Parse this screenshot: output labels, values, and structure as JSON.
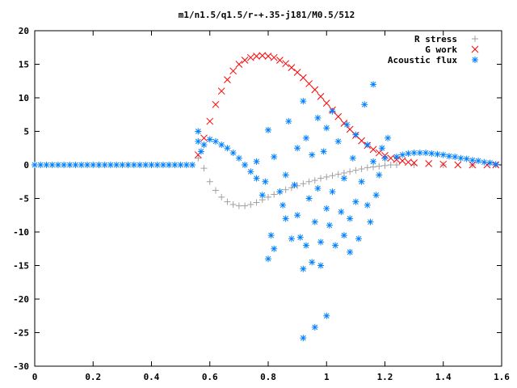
{
  "chart_data": {
    "type": "scatter",
    "title": "m1/n1.5/q1.5/r-+.35-j181/M0.5/512",
    "xlabel": "",
    "ylabel": "",
    "xlim": [
      0,
      1.6
    ],
    "ylim": [
      -30,
      20
    ],
    "x_ticks": [
      0,
      0.2,
      0.4,
      0.6,
      0.8,
      1,
      1.2,
      1.4,
      1.6
    ],
    "x_tick_labels": [
      "0",
      "0.2",
      "0.4",
      "0.6",
      "0.8",
      "1",
      "1.2",
      "1.4",
      "1.6"
    ],
    "y_ticks": [
      -30,
      -25,
      -20,
      -15,
      -10,
      -5,
      0,
      5,
      10,
      15,
      20
    ],
    "y_tick_labels": [
      "-30",
      "-25",
      "-20",
      "-15",
      "-10",
      "-5",
      "0",
      "5",
      "10",
      "15",
      "20"
    ],
    "grid": false,
    "legend_position": "top-right",
    "series": [
      {
        "name": "R stress",
        "marker": "plus",
        "color": "#a0a0a0",
        "points": [
          [
            0.56,
            1.0
          ],
          [
            0.58,
            -0.5
          ],
          [
            0.6,
            -2.5
          ],
          [
            0.62,
            -3.8
          ],
          [
            0.64,
            -4.8
          ],
          [
            0.66,
            -5.5
          ],
          [
            0.68,
            -5.9
          ],
          [
            0.7,
            -6.1
          ],
          [
            0.72,
            -6.1
          ],
          [
            0.74,
            -5.9
          ],
          [
            0.76,
            -5.6
          ],
          [
            0.78,
            -5.2
          ],
          [
            0.8,
            -4.8
          ],
          [
            0.82,
            -4.4
          ],
          [
            0.84,
            -4.0
          ],
          [
            0.86,
            -3.7
          ],
          [
            0.88,
            -3.4
          ],
          [
            0.9,
            -3.1
          ],
          [
            0.92,
            -2.8
          ],
          [
            0.94,
            -2.5
          ],
          [
            0.96,
            -2.3
          ],
          [
            0.98,
            -2.0
          ],
          [
            1.0,
            -1.8
          ],
          [
            1.02,
            -1.6
          ],
          [
            1.04,
            -1.4
          ],
          [
            1.06,
            -1.2
          ],
          [
            1.08,
            -1.0
          ],
          [
            1.1,
            -0.8
          ],
          [
            1.12,
            -0.6
          ],
          [
            1.14,
            -0.4
          ],
          [
            1.16,
            -0.3
          ],
          [
            1.18,
            -0.2
          ],
          [
            1.2,
            -0.1
          ],
          [
            1.22,
            0.0
          ],
          [
            1.24,
            0.0
          ],
          [
            1.3,
            0.0
          ],
          [
            1.4,
            0.0
          ],
          [
            1.5,
            0.0
          ],
          [
            1.58,
            0.0
          ]
        ]
      },
      {
        "name": "G work",
        "marker": "cross",
        "color": "#ff0000",
        "points": [
          [
            0.56,
            1.5
          ],
          [
            0.58,
            4.0
          ],
          [
            0.6,
            6.5
          ],
          [
            0.62,
            9.0
          ],
          [
            0.64,
            11.0
          ],
          [
            0.66,
            12.7
          ],
          [
            0.68,
            14.0
          ],
          [
            0.7,
            15.0
          ],
          [
            0.72,
            15.6
          ],
          [
            0.74,
            16.0
          ],
          [
            0.76,
            16.2
          ],
          [
            0.78,
            16.3
          ],
          [
            0.8,
            16.2
          ],
          [
            0.82,
            16.0
          ],
          [
            0.84,
            15.6
          ],
          [
            0.86,
            15.1
          ],
          [
            0.88,
            14.5
          ],
          [
            0.9,
            13.8
          ],
          [
            0.92,
            13.0
          ],
          [
            0.94,
            12.1
          ],
          [
            0.96,
            11.2
          ],
          [
            0.98,
            10.2
          ],
          [
            1.0,
            9.2
          ],
          [
            1.02,
            8.2
          ],
          [
            1.04,
            7.2
          ],
          [
            1.06,
            6.2
          ],
          [
            1.08,
            5.3
          ],
          [
            1.1,
            4.4
          ],
          [
            1.12,
            3.6
          ],
          [
            1.14,
            2.9
          ],
          [
            1.16,
            2.3
          ],
          [
            1.18,
            1.8
          ],
          [
            1.2,
            1.4
          ],
          [
            1.22,
            1.0
          ],
          [
            1.24,
            0.8
          ],
          [
            1.26,
            0.6
          ],
          [
            1.28,
            0.4
          ],
          [
            1.3,
            0.3
          ],
          [
            1.35,
            0.2
          ],
          [
            1.4,
            0.1
          ],
          [
            1.45,
            0.0
          ],
          [
            1.5,
            0.0
          ],
          [
            1.55,
            0.0
          ],
          [
            1.58,
            0.0
          ]
        ]
      },
      {
        "name": "Acoustic flux",
        "marker": "star",
        "color": "#0080ff",
        "points": [
          [
            0.0,
            0.0
          ],
          [
            0.02,
            0.0
          ],
          [
            0.04,
            0.0
          ],
          [
            0.06,
            0.0
          ],
          [
            0.08,
            0.0
          ],
          [
            0.1,
            0.0
          ],
          [
            0.12,
            0.0
          ],
          [
            0.14,
            0.0
          ],
          [
            0.16,
            0.0
          ],
          [
            0.18,
            0.0
          ],
          [
            0.2,
            0.0
          ],
          [
            0.22,
            0.0
          ],
          [
            0.24,
            0.0
          ],
          [
            0.26,
            0.0
          ],
          [
            0.28,
            0.0
          ],
          [
            0.3,
            0.0
          ],
          [
            0.32,
            0.0
          ],
          [
            0.34,
            0.0
          ],
          [
            0.36,
            0.0
          ],
          [
            0.38,
            0.0
          ],
          [
            0.4,
            0.0
          ],
          [
            0.42,
            0.0
          ],
          [
            0.44,
            0.0
          ],
          [
            0.46,
            0.0
          ],
          [
            0.48,
            0.0
          ],
          [
            0.5,
            0.0
          ],
          [
            0.52,
            0.0
          ],
          [
            0.54,
            0.0
          ],
          [
            0.56,
            3.5
          ],
          [
            0.56,
            5.0
          ],
          [
            0.57,
            2.0
          ],
          [
            0.58,
            3.0
          ],
          [
            0.6,
            3.8
          ],
          [
            0.62,
            3.5
          ],
          [
            0.64,
            3.0
          ],
          [
            0.66,
            2.5
          ],
          [
            0.68,
            1.8
          ],
          [
            0.7,
            1.0
          ],
          [
            0.72,
            0.0
          ],
          [
            0.74,
            -1.0
          ],
          [
            0.76,
            -2.0
          ],
          [
            0.76,
            0.5
          ],
          [
            0.78,
            -4.5
          ],
          [
            0.79,
            -2.5
          ],
          [
            0.8,
            5.2
          ],
          [
            0.8,
            -14.0
          ],
          [
            0.81,
            -10.5
          ],
          [
            0.82,
            -12.5
          ],
          [
            0.82,
            1.2
          ],
          [
            0.84,
            -4.0
          ],
          [
            0.85,
            -6.0
          ],
          [
            0.86,
            -8.0
          ],
          [
            0.86,
            -1.5
          ],
          [
            0.87,
            6.5
          ],
          [
            0.88,
            -11.0
          ],
          [
            0.89,
            -3.0
          ],
          [
            0.9,
            2.5
          ],
          [
            0.9,
            -7.5
          ],
          [
            0.91,
            -10.8
          ],
          [
            0.92,
            9.5
          ],
          [
            0.92,
            -15.5
          ],
          [
            0.93,
            4.0
          ],
          [
            0.93,
            -12.0
          ],
          [
            0.94,
            -5.0
          ],
          [
            0.95,
            1.5
          ],
          [
            0.95,
            -14.5
          ],
          [
            0.96,
            -8.5
          ],
          [
            0.97,
            7.0
          ],
          [
            0.97,
            -3.5
          ],
          [
            0.98,
            -11.5
          ],
          [
            0.98,
            -15.0
          ],
          [
            0.99,
            2.0
          ],
          [
            1.0,
            5.5
          ],
          [
            1.0,
            -6.5
          ],
          [
            1.01,
            -9.0
          ],
          [
            1.02,
            -4.0
          ],
          [
            1.02,
            8.0
          ],
          [
            1.03,
            -12.0
          ],
          [
            1.04,
            3.5
          ],
          [
            1.05,
            -7.0
          ],
          [
            1.06,
            -2.0
          ],
          [
            1.06,
            -10.5
          ],
          [
            1.07,
            6.0
          ],
          [
            1.08,
            -8.0
          ],
          [
            1.08,
            -13.0
          ],
          [
            1.09,
            1.0
          ],
          [
            1.1,
            -5.5
          ],
          [
            1.1,
            4.5
          ],
          [
            1.11,
            -11.0
          ],
          [
            1.12,
            -2.5
          ],
          [
            1.13,
            9.0
          ],
          [
            1.14,
            -6.0
          ],
          [
            1.14,
            3.0
          ],
          [
            1.15,
            -8.5
          ],
          [
            1.16,
            12.0
          ],
          [
            1.16,
            0.5
          ],
          [
            1.17,
            -4.5
          ],
          [
            1.18,
            -1.5
          ],
          [
            1.19,
            2.5
          ],
          [
            1.2,
            1.0
          ],
          [
            1.21,
            4.0
          ],
          [
            0.92,
            -25.8
          ],
          [
            0.96,
            -24.2
          ],
          [
            1.0,
            -22.5
          ],
          [
            1.24,
            1.2
          ],
          [
            1.26,
            1.5
          ],
          [
            1.28,
            1.7
          ],
          [
            1.3,
            1.8
          ],
          [
            1.32,
            1.8
          ],
          [
            1.34,
            1.8
          ],
          [
            1.36,
            1.7
          ],
          [
            1.38,
            1.6
          ],
          [
            1.4,
            1.5
          ],
          [
            1.42,
            1.3
          ],
          [
            1.44,
            1.2
          ],
          [
            1.46,
            1.0
          ],
          [
            1.48,
            0.9
          ],
          [
            1.5,
            0.7
          ],
          [
            1.52,
            0.6
          ],
          [
            1.54,
            0.4
          ],
          [
            1.56,
            0.3
          ],
          [
            1.58,
            0.1
          ]
        ]
      }
    ]
  }
}
